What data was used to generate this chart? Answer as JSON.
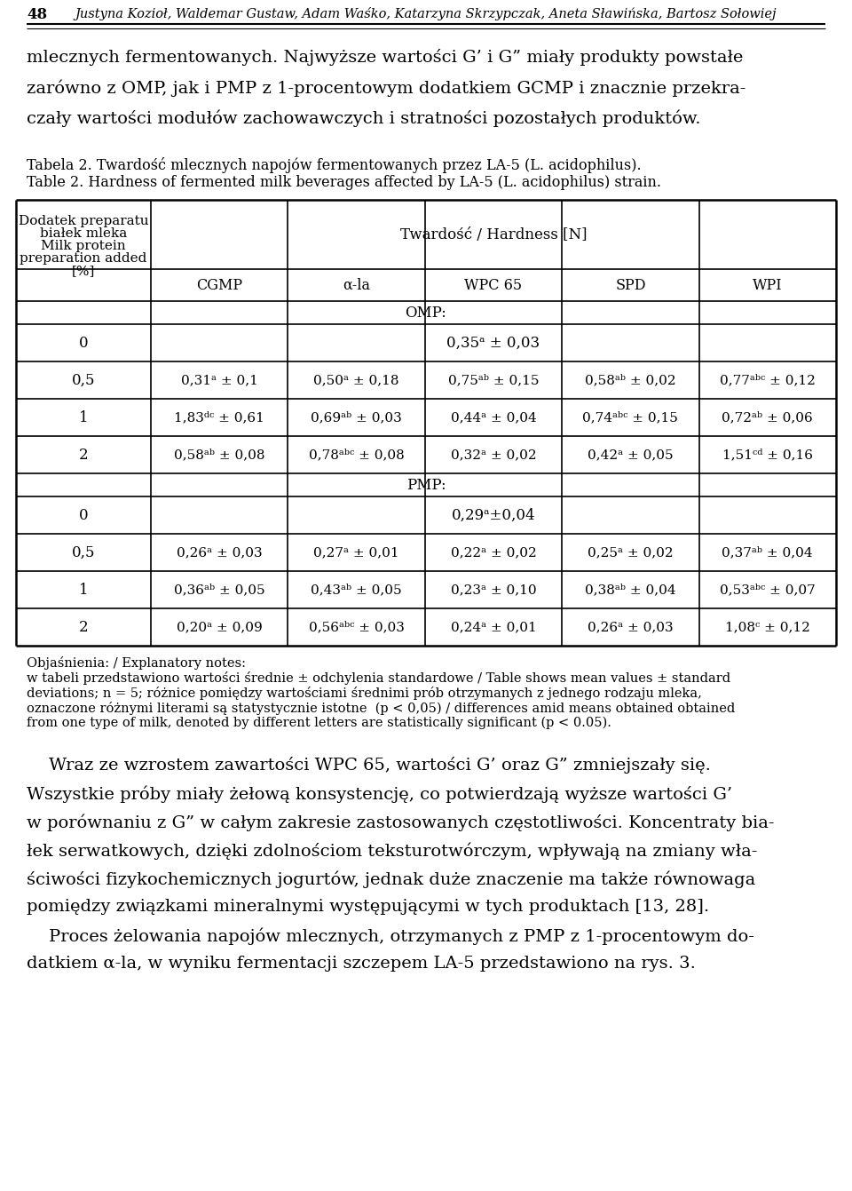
{
  "page_num": "48",
  "header_authors": "Justyna Kozioł, Waldemar Gustaw, Adam Waśko, Katarzyna Skrzypczak, Aneta Sławińska, Bartosz Sołowiej",
  "intro_lines": [
    "mlecznych fermentowanych. Najwyższe wartości G’ i G” miały produkty powstałe",
    "zarówno z OMP, jak i PMP z 1-procentowym dodatkiem GCMP i znacznie przekra-",
    "czały wartości modułów zachowawczych i stratności pozostałych produktów."
  ],
  "table_caption_pl": "Tabela 2. Twardość mlecznych napojów fermentowanych przez LA-5 (L. acidophilus).",
  "table_caption_en": "Table 2. Hardness of fermented milk beverages affected by LA-5 (L. acidophilus) strain.",
  "col_header_left": [
    "Dodatek preparatu",
    "białek mleka",
    "Milk protein",
    "preparation added",
    "[%]"
  ],
  "col_header_right": "Twardość / Hardness [N]",
  "col_headers": [
    "CGMP",
    "α-la",
    "WPC 65",
    "SPD",
    "WPI"
  ],
  "omp_label": "OMP:",
  "pmp_label": "PMP:",
  "omp_row0_label": "0",
  "omp_row0_value": "0,35ᵃ ± 0,03",
  "omp_rows": [
    {
      "label": "0,5",
      "values": [
        "0,31ᵃ ± 0,1",
        "0,50ᵃ ± 0,18",
        "0,75ᵃᵇ ± 0,15",
        "0,58ᵃᵇ ± 0,02",
        "0,77ᵃᵇᶜ ± 0,12"
      ]
    },
    {
      "label": "1",
      "values": [
        "1,83ᵈᶜ ± 0,61",
        "0,69ᵃᵇ ± 0,03",
        "0,44ᵃ ± 0,04",
        "0,74ᵃᵇᶜ ± 0,15",
        "0,72ᵃᵇ ± 0,06"
      ]
    },
    {
      "label": "2",
      "values": [
        "0,58ᵃᵇ ± 0,08",
        "0,78ᵃᵇᶜ ± 0,08",
        "0,32ᵃ ± 0,02",
        "0,42ᵃ ± 0,05",
        "1,51ᶜᵈ ± 0,16"
      ]
    }
  ],
  "pmp_row0_label": "0",
  "pmp_row0_value": "0,29ᵃ±0,04",
  "pmp_rows": [
    {
      "label": "0,5",
      "values": [
        "0,26ᵃ ± 0,03",
        "0,27ᵃ ± 0,01",
        "0,22ᵃ ± 0,02",
        "0,25ᵃ ± 0,02",
        "0,37ᵃᵇ ± 0,04"
      ]
    },
    {
      "label": "1",
      "values": [
        "0,36ᵃᵇ ± 0,05",
        "0,43ᵃᵇ ± 0,05",
        "0,23ᵃ ± 0,10",
        "0,38ᵃᵇ ± 0,04",
        "0,53ᵃᵇᶜ ± 0,07"
      ]
    },
    {
      "label": "2",
      "values": [
        "0,20ᵃ ± 0,09",
        "0,56ᵃᵇᶜ ± 0,03",
        "0,24ᵃ ± 0,01",
        "0,26ᵃ ± 0,03",
        "1,08ᶜ ± 0,12"
      ]
    }
  ],
  "footnotes": [
    "Objaśnienia: / Explanatory notes:",
    "w tabeli przedstawiono wartości średnie ± odchylenia standardowe / Table shows mean values ± standard",
    "deviations; n = 5; różnice pomiędzy wartościami średnimi prób otrzymanych z jednego rodzaju mleka,",
    "oznaczone różnymi literami są statystycznie istotne  (p < 0,05) / differences amid means obtained obtained",
    "from one type of milk, denoted by different letters are statistically significant (p < 0.05)."
  ],
  "closing_lines": [
    "    Wraz ze wzrostem zawartości WPC 65, wartości G’ oraz G” zmniejszały się.",
    "Wszystkie próby miały żełową konsystencję, co potwierdzają wyższe wartości G’",
    "w porównaniu z G” w całym zakresie zastosowanych częstotliwości. Koncentraty bia-",
    "łek serwatkowych, dzięki zdolnościom teksturotwórczym, wpływają na zmiany wła-",
    "ściwości fizykochemicznych jogurtów, jednak duże znaczenie ma także równowaga",
    "pomiędzy związkami mineralnymi występującymi w tych produktach [13, 28].",
    "    Proces żelowania napojów mlecznych, otrzymanych z PMP z 1-procentowym do-",
    "datkiem α-la, w wyniku fermentacji szczepem LA-5 przedstawiono na rys. 3."
  ]
}
